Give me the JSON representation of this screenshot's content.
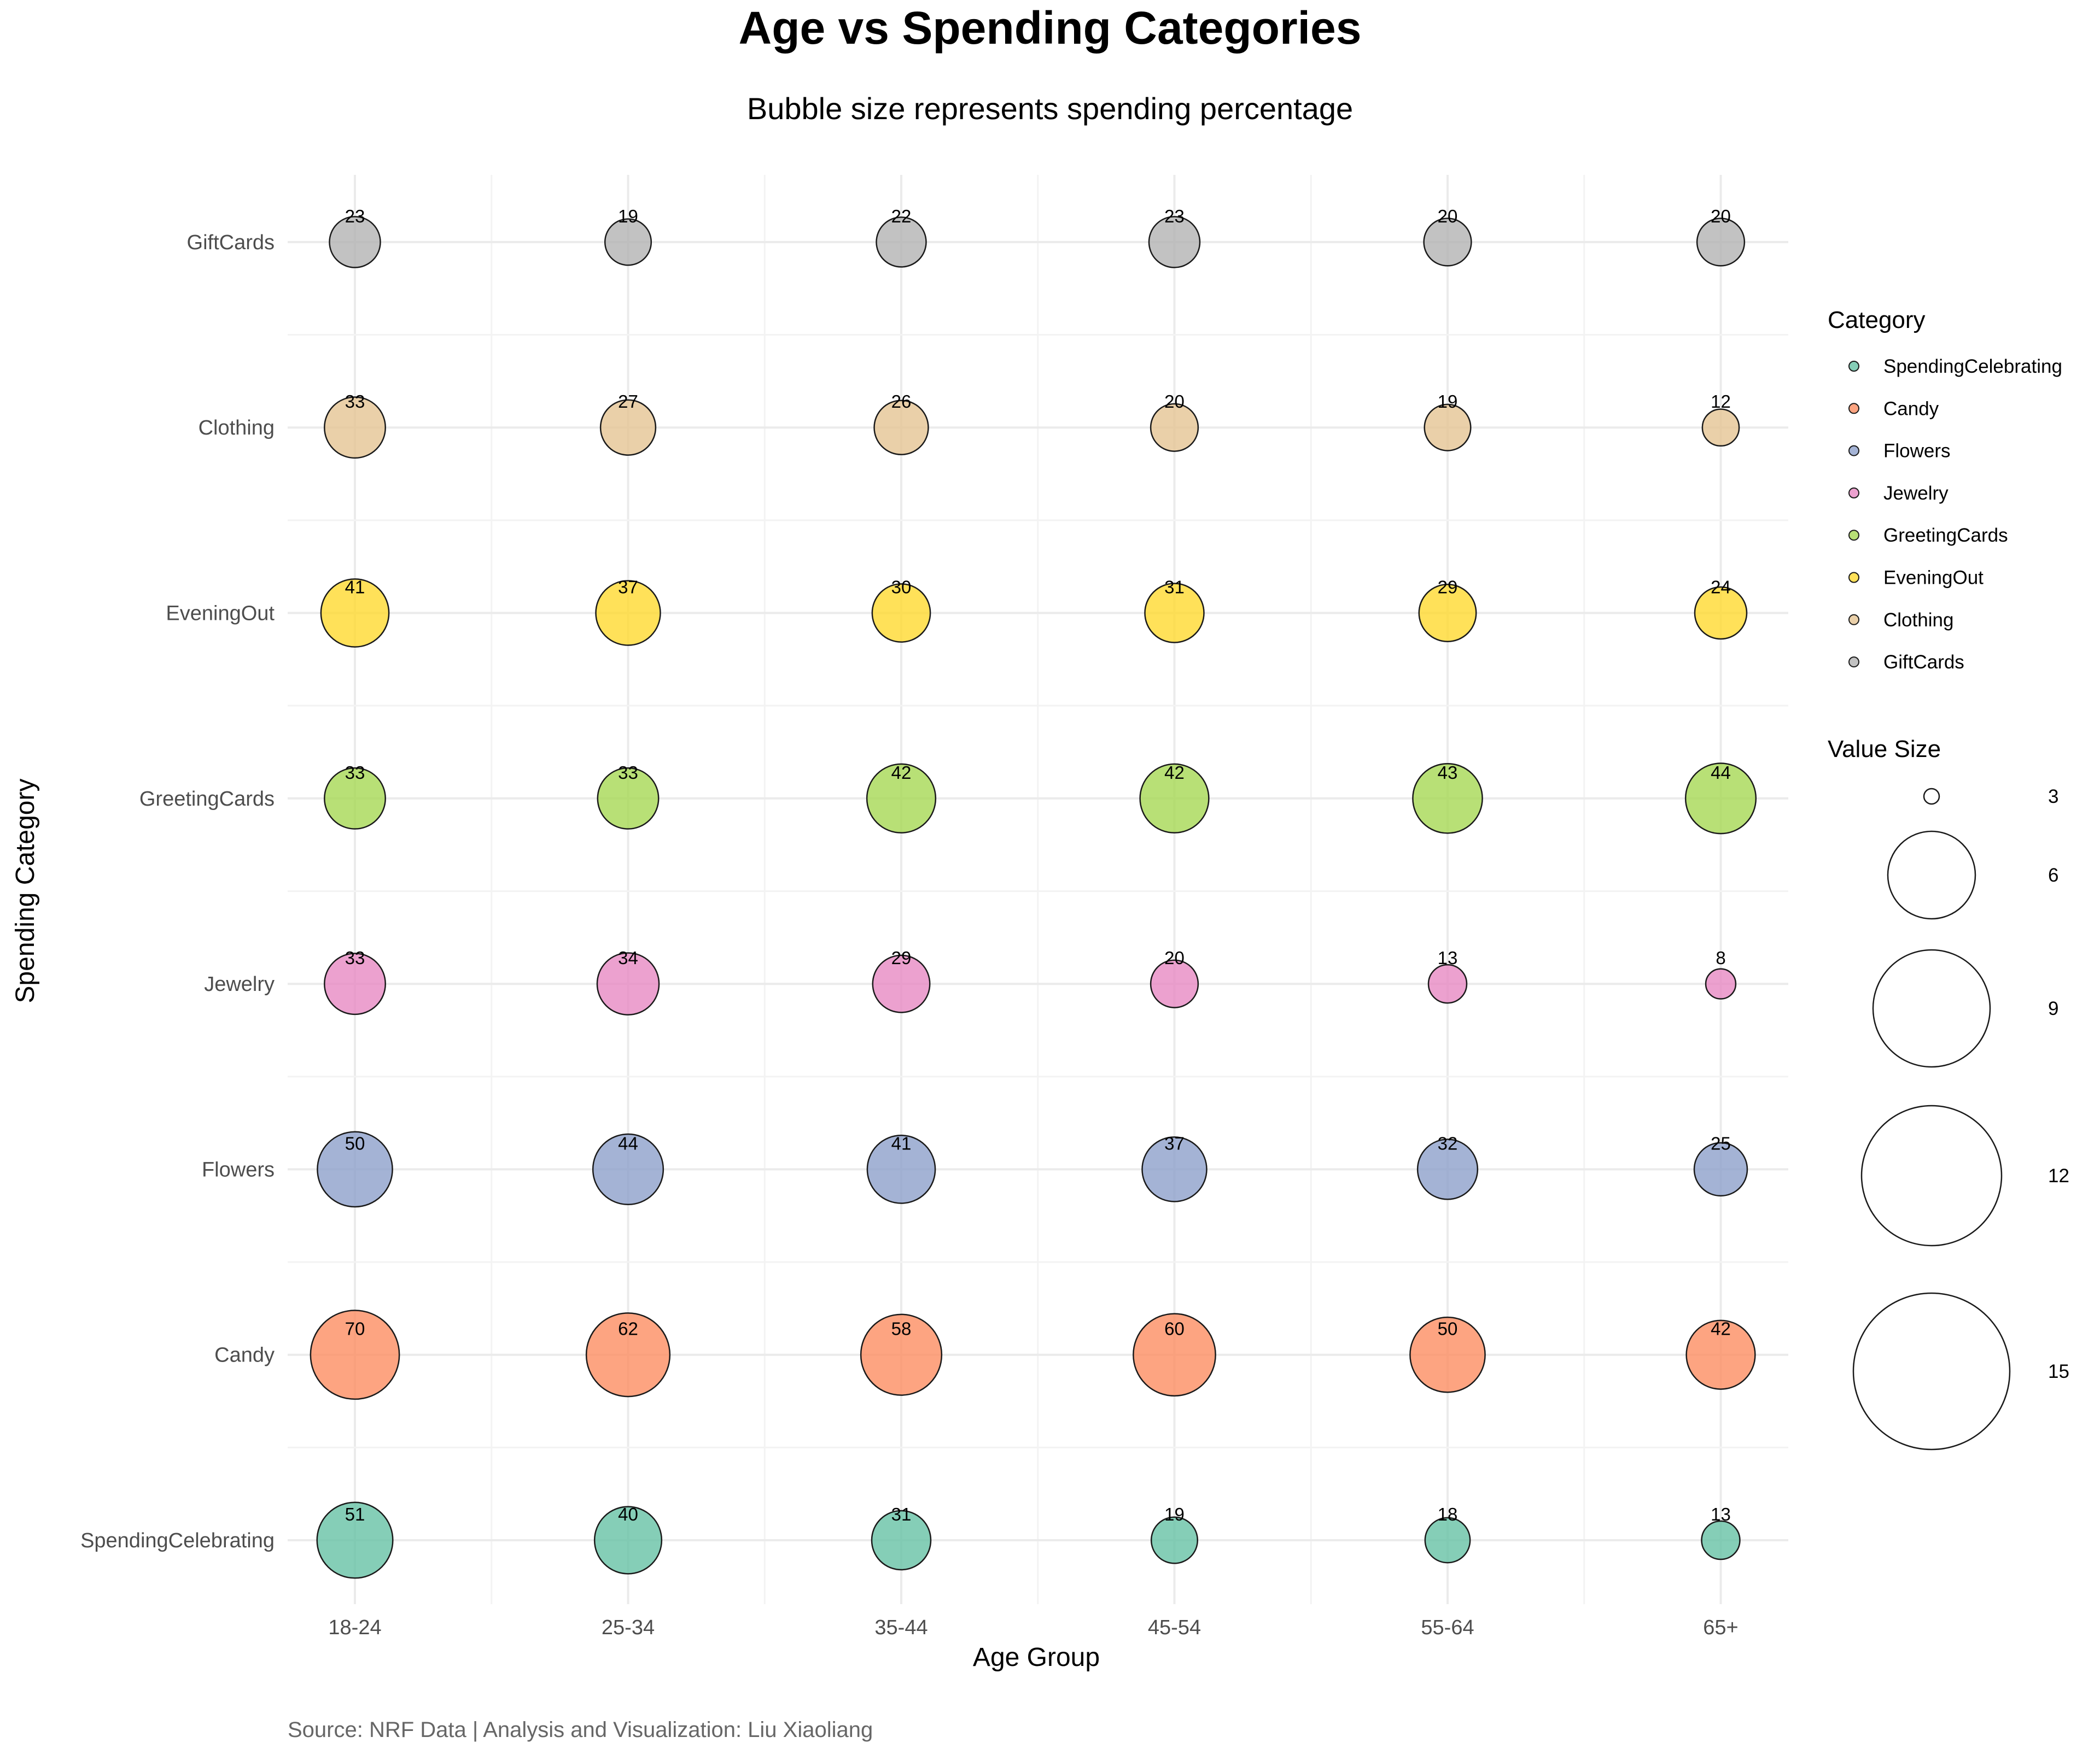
{
  "chart_data": {
    "type": "scatter",
    "title": "Age vs Spending Categories",
    "subtitle": "Bubble size represents spending percentage",
    "xlabel": "Age Group",
    "ylabel": "Spending Category",
    "caption": "Source: NRF Data | Analysis and Visualization: Liu Xiaoliang",
    "x_categories": [
      "18-24",
      "25-34",
      "35-44",
      "45-54",
      "55-64",
      "65+"
    ],
    "y_categories": [
      "SpendingCelebrating",
      "Candy",
      "Flowers",
      "Jewelry",
      "GreetingCards",
      "EveningOut",
      "Clothing",
      "GiftCards"
    ],
    "series": [
      {
        "name": "SpendingCelebrating",
        "color": "#66C2A5",
        "values": [
          51,
          40,
          31,
          19,
          18,
          13
        ]
      },
      {
        "name": "Candy",
        "color": "#FC8D62",
        "values": [
          70,
          62,
          58,
          60,
          50,
          42
        ]
      },
      {
        "name": "Flowers",
        "color": "#8DA0CB",
        "values": [
          50,
          44,
          41,
          37,
          32,
          25
        ]
      },
      {
        "name": "Jewelry",
        "color": "#E78AC3",
        "values": [
          33,
          34,
          29,
          20,
          13,
          8
        ]
      },
      {
        "name": "GreetingCards",
        "color": "#A6D854",
        "values": [
          33,
          33,
          42,
          42,
          43,
          44
        ]
      },
      {
        "name": "EveningOut",
        "color": "#FFD92F",
        "values": [
          41,
          37,
          30,
          31,
          29,
          24
        ]
      },
      {
        "name": "Clothing",
        "color": "#E5C494",
        "values": [
          33,
          27,
          26,
          20,
          19,
          12
        ]
      },
      {
        "name": "GiftCards",
        "color": "#B3B3B3",
        "values": [
          23,
          19,
          22,
          23,
          20,
          20
        ]
      }
    ],
    "legend": {
      "category_title": "Category",
      "size_title": "Value Size",
      "size_breaks": [
        "3",
        "6",
        "9",
        "12",
        "15"
      ]
    },
    "grid": true,
    "legend_position": "right"
  }
}
